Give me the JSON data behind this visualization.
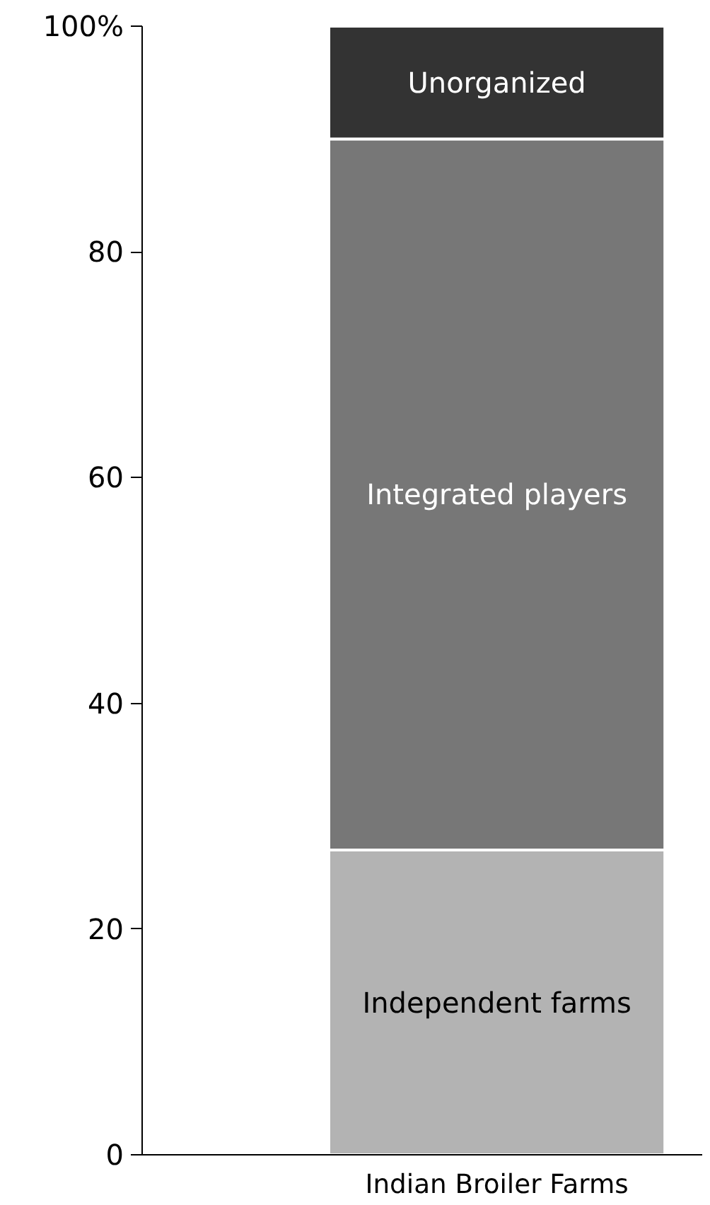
{
  "chart_data": {
    "type": "bar",
    "stacked": true,
    "categories": [
      "Indian Broiler Farms"
    ],
    "series": [
      {
        "name": "Independent farms",
        "color": "#b3b3b3",
        "values": [
          27
        ]
      },
      {
        "name": "Integrated players",
        "color": "#777777",
        "values": [
          63
        ]
      },
      {
        "name": "Unorganized",
        "color": "#333333",
        "values": [
          10
        ]
      }
    ],
    "ylim": [
      0,
      100
    ],
    "yticks": [
      0,
      20,
      40,
      60,
      80,
      {
        "value": 100,
        "label": "100%"
      }
    ],
    "grid": false
  }
}
